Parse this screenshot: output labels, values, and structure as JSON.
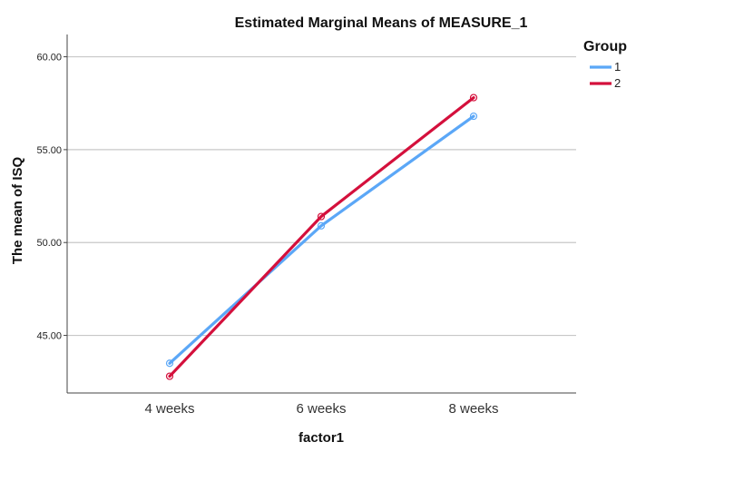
{
  "chart_data": {
    "type": "line",
    "title": "Estimated Marginal Means of MEASURE_1",
    "xlabel": "factor1",
    "ylabel": "The mean of ISQ",
    "categories": [
      "4 weeks",
      "6 weeks",
      "8 weeks"
    ],
    "y_ticks": [
      "45.00",
      "50.00",
      "55.00",
      "60.00"
    ],
    "y_tick_values": [
      45,
      50,
      55,
      60
    ],
    "ylim": [
      41.9,
      61.2
    ],
    "grid": "horizontal",
    "legend": {
      "title": "Group",
      "placement": "right-top"
    },
    "series": [
      {
        "name": "1",
        "color": "#5ba7f7",
        "values": [
          43.5,
          50.9,
          56.8
        ]
      },
      {
        "name": "2",
        "color": "#d4103c",
        "values": [
          42.8,
          51.4,
          57.8
        ]
      }
    ]
  }
}
